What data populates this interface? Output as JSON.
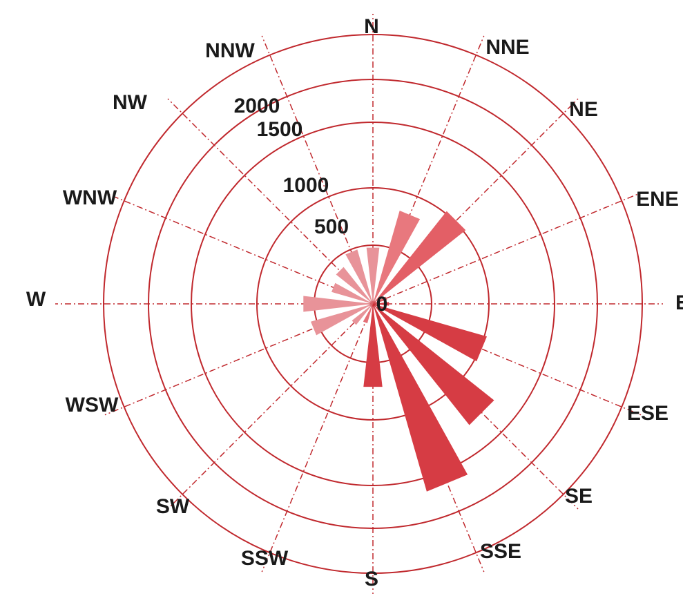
{
  "chart_data": {
    "type": "rose",
    "title": "",
    "directions": [
      "N",
      "NNE",
      "NE",
      "ENE",
      "E",
      "ESE",
      "SE",
      "SSE",
      "S",
      "SSW",
      "SW",
      "WSW",
      "W",
      "WNW",
      "NW",
      "NNW"
    ],
    "values": [
      420,
      720,
      880,
      110,
      120,
      880,
      1150,
      1450,
      620,
      150,
      200,
      480,
      520,
      320,
      350,
      420
    ],
    "r_ticks": [
      0,
      500,
      1000,
      1500,
      2000
    ],
    "r_tick_labels": [
      "0",
      "500",
      "1000",
      "1500",
      "2000"
    ],
    "r_max": 2000,
    "colors": {
      "ring": "#c0282d",
      "spoke": "#c0282d",
      "petal_dark": "#d63c44",
      "petal_light": "#e89399",
      "text": "#1a1a1a"
    },
    "petal_colors": [
      "#e89399",
      "#e8787e",
      "#e35f66",
      "#e35f66",
      "#d63c44",
      "#d63c44",
      "#d63c44",
      "#d63c44",
      "#d63c44",
      "#e47077",
      "#e89399",
      "#e89399",
      "#e89399",
      "#e89399",
      "#e89399",
      "#e89399"
    ]
  }
}
